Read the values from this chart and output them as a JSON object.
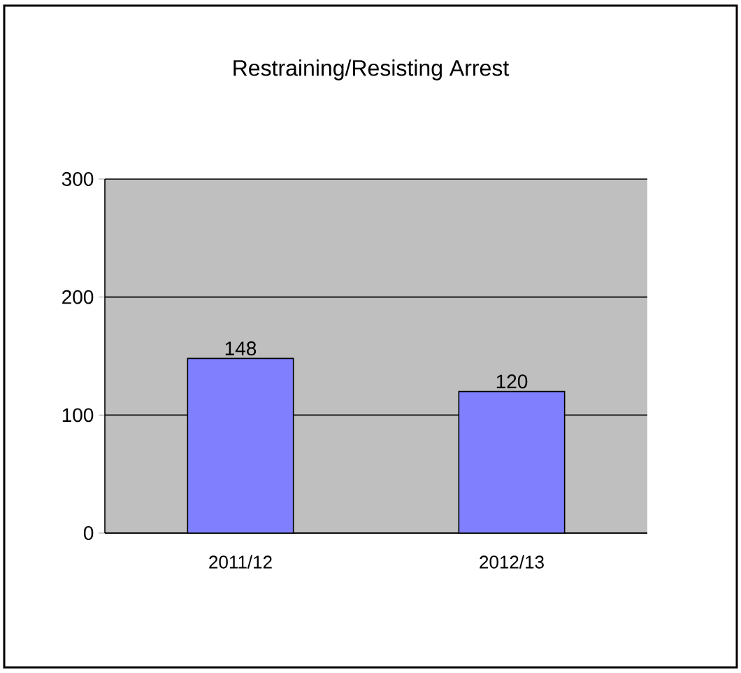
{
  "chart_data": {
    "type": "bar",
    "title": "Restraining/Resisting Arrest",
    "categories": [
      "2011/12",
      "2012/13"
    ],
    "values": [
      148,
      120
    ],
    "color": "#8080ff",
    "ylim": [
      0,
      300
    ],
    "yticks": [
      0,
      100,
      200,
      300
    ],
    "grid": "y",
    "data_labels": true
  }
}
